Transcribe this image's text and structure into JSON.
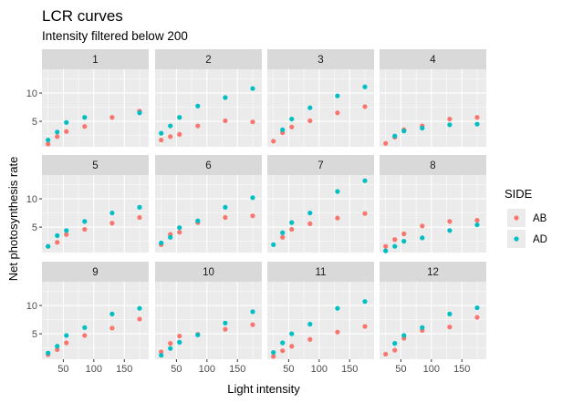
{
  "chart_data": {
    "type": "scatter",
    "title": "LCR curves",
    "subtitle": "Intensity filtered below 200",
    "xlabel": "Light intensity",
    "ylabel": "Net photosynthesis rate",
    "x_ticks": [
      50,
      100,
      150
    ],
    "y_ticks": [
      5,
      10
    ],
    "xlim": [
      15,
      190
    ],
    "ylim": [
      0.5,
      14.2
    ],
    "grid": true,
    "legend": {
      "title": "SIDE",
      "position": "right",
      "entries": [
        {
          "name": "AB",
          "color": "#F8766D"
        },
        {
          "name": "AD",
          "color": "#00BFC4"
        }
      ]
    },
    "panels": [
      {
        "label": "1",
        "series": [
          {
            "name": "AB",
            "x": [
              25,
              40,
              55,
              85,
              130,
              175
            ],
            "y": [
              1.0,
              2.3,
              3.2,
              4.1,
              5.7,
              6.8
            ]
          },
          {
            "name": "AD",
            "x": [
              25,
              40,
              55,
              85,
              130,
              175
            ],
            "y": [
              1.7,
              3.1,
              4.8,
              5.7,
              null,
              6.5
            ]
          }
        ]
      },
      {
        "label": "2",
        "series": [
          {
            "name": "AB",
            "x": [
              25,
              40,
              55,
              85,
              130,
              175
            ],
            "y": [
              1.7,
              2.3,
              2.7,
              4.2,
              5.1,
              4.9
            ]
          },
          {
            "name": "AD",
            "x": [
              25,
              40,
              55,
              85,
              130,
              175
            ],
            "y": [
              2.9,
              4.2,
              5.7,
              7.7,
              9.2,
              10.8
            ]
          }
        ]
      },
      {
        "label": "3",
        "series": [
          {
            "name": "AB",
            "x": [
              25,
              40,
              55,
              85,
              130,
              175
            ],
            "y": [
              1.5,
              3.0,
              4.0,
              5.1,
              6.5,
              7.6
            ]
          },
          {
            "name": "AD",
            "x": [
              25,
              40,
              55,
              85,
              130,
              175
            ],
            "y": [
              null,
              3.5,
              5.4,
              7.4,
              9.5,
              11.1
            ]
          }
        ]
      },
      {
        "label": "4",
        "series": [
          {
            "name": "AB",
            "x": [
              25,
              40,
              55,
              85,
              130,
              175
            ],
            "y": [
              1.1,
              2.2,
              3.5,
              4.2,
              5.4,
              5.7
            ]
          },
          {
            "name": "AD",
            "x": [
              25,
              40,
              55,
              85,
              130,
              175
            ],
            "y": [
              null,
              2.4,
              3.3,
              3.8,
              4.4,
              4.5
            ]
          }
        ]
      },
      {
        "label": "5",
        "series": [
          {
            "name": "AB",
            "x": [
              25,
              40,
              55,
              85,
              130,
              175
            ],
            "y": [
              1.6,
              2.3,
              3.7,
              4.6,
              5.7,
              6.7
            ]
          },
          {
            "name": "AD",
            "x": [
              25,
              40,
              55,
              85,
              130,
              175
            ],
            "y": [
              1.6,
              3.5,
              4.4,
              6.0,
              7.5,
              8.5
            ]
          }
        ]
      },
      {
        "label": "6",
        "series": [
          {
            "name": "AB",
            "x": [
              25,
              40,
              55,
              85,
              130,
              175
            ],
            "y": [
              1.9,
              3.7,
              4.1,
              5.8,
              6.7,
              7.0
            ]
          },
          {
            "name": "AD",
            "x": [
              25,
              40,
              55,
              85,
              130,
              175
            ],
            "y": [
              2.2,
              3.2,
              4.9,
              6.1,
              8.5,
              10.2
            ]
          }
        ]
      },
      {
        "label": "7",
        "series": [
          {
            "name": "AB",
            "x": [
              25,
              40,
              55,
              85,
              130,
              175
            ],
            "y": [
              null,
              3.2,
              4.6,
              5.6,
              6.6,
              7.4
            ]
          },
          {
            "name": "AD",
            "x": [
              25,
              40,
              55,
              85,
              130,
              175
            ],
            "y": [
              1.9,
              4.0,
              5.8,
              7.5,
              11.3,
              13.2
            ]
          }
        ]
      },
      {
        "label": "8",
        "series": [
          {
            "name": "AB",
            "x": [
              25,
              40,
              55,
              85,
              130,
              175
            ],
            "y": [
              1.6,
              2.8,
              3.8,
              5.2,
              6.0,
              6.2
            ]
          },
          {
            "name": "AD",
            "x": [
              25,
              40,
              55,
              85,
              130,
              175
            ],
            "y": [
              0.8,
              1.6,
              2.5,
              3.1,
              4.4,
              5.4
            ]
          }
        ]
      },
      {
        "label": "9",
        "series": [
          {
            "name": "AB",
            "x": [
              25,
              40,
              55,
              85,
              130,
              175
            ],
            "y": [
              1.3,
              2.2,
              3.4,
              4.7,
              6.0,
              7.6
            ]
          },
          {
            "name": "AD",
            "x": [
              25,
              40,
              55,
              85,
              130,
              175
            ],
            "y": [
              1.6,
              2.8,
              4.7,
              6.1,
              8.5,
              9.5
            ]
          }
        ]
      },
      {
        "label": "10",
        "series": [
          {
            "name": "AB",
            "x": [
              25,
              40,
              55,
              85,
              130,
              175
            ],
            "y": [
              1.8,
              3.3,
              4.6,
              4.9,
              5.8,
              6.6
            ]
          },
          {
            "name": "AD",
            "x": [
              25,
              40,
              55,
              85,
              130,
              175
            ],
            "y": [
              1.2,
              2.4,
              3.5,
              4.8,
              6.9,
              8.9
            ]
          }
        ]
      },
      {
        "label": "11",
        "series": [
          {
            "name": "AB",
            "x": [
              25,
              40,
              55,
              85,
              130,
              175
            ],
            "y": [
              1.0,
              2.0,
              2.8,
              4.0,
              5.3,
              6.3
            ]
          },
          {
            "name": "AD",
            "x": [
              25,
              40,
              55,
              85,
              130,
              175
            ],
            "y": [
              1.7,
              3.4,
              5.0,
              6.7,
              9.5,
              10.7
            ]
          }
        ]
      },
      {
        "label": "12",
        "series": [
          {
            "name": "AB",
            "x": [
              25,
              40,
              55,
              85,
              130,
              175
            ],
            "y": [
              1.4,
              2.1,
              4.2,
              5.6,
              6.2,
              7.9
            ]
          },
          {
            "name": "AD",
            "x": [
              25,
              40,
              55,
              85,
              130,
              175
            ],
            "y": [
              null,
              3.3,
              4.7,
              6.1,
              8.5,
              9.6
            ]
          }
        ]
      }
    ]
  }
}
